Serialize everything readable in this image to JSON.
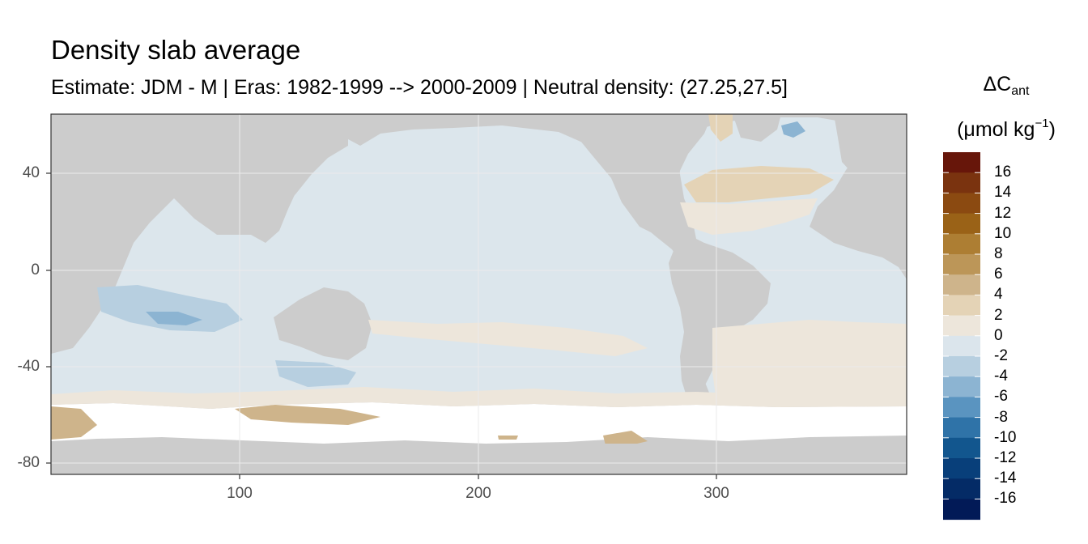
{
  "title": "Density slab average",
  "subtitle": "Estimate: JDM - M | Eras: 1982-1999 --> 2000-2009 | Neutral density: (27.25,27.5]",
  "legend": {
    "title_main": "ΔC",
    "title_sub": "ant",
    "unit_prefix": "(μmol kg",
    "unit_sup": "−1",
    "unit_suffix": ")",
    "bins": [
      {
        "label": "16",
        "color": "#67160a"
      },
      {
        "label": "14",
        "color": "#7a330f"
      },
      {
        "label": "12",
        "color": "#8b4a11"
      },
      {
        "label": "10",
        "color": "#9a6217"
      },
      {
        "label": "8",
        "color": "#ad7e33"
      },
      {
        "label": "6",
        "color": "#bc9658"
      },
      {
        "label": "4",
        "color": "#ceb48b"
      },
      {
        "label": "2",
        "color": "#e4d3b6"
      },
      {
        "label": "0",
        "color": "#ede6db"
      },
      {
        "label": "-2",
        "color": "#dbe5ec"
      },
      {
        "label": "-4",
        "color": "#b7cfe0"
      },
      {
        "label": "-6",
        "color": "#8cb4d2"
      },
      {
        "label": "-8",
        "color": "#5a94c0"
      },
      {
        "label": "-10",
        "color": "#2f73a8"
      },
      {
        "label": "-12",
        "color": "#12568e"
      },
      {
        "label": "-14",
        "color": "#083f7a"
      },
      {
        "label": "-16",
        "color": "#042b66"
      }
    ],
    "bottom_color": "#021a57"
  },
  "axes": {
    "x_ticks": [
      "100",
      "200",
      "300"
    ],
    "y_ticks": [
      "40",
      "0",
      "-40",
      "-80"
    ]
  },
  "colors": {
    "land": "#cccccc",
    "no_data": "#ffffff",
    "ocean_slight_negative": "#dce6ec",
    "grid": "#ebebeb",
    "frame": "#333333"
  },
  "chart_data": {
    "type": "heatmap",
    "title": "Density slab average",
    "subtitle": "Estimate: JDM - M | Eras: 1982-1999 --> 2000-2009 | Neutral density: (27.25,27.5]",
    "xlabel": "",
    "ylabel": "",
    "xlim": [
      20,
      380
    ],
    "ylim": [
      -85,
      65
    ],
    "x_ticks": [
      100,
      200,
      300
    ],
    "y_ticks": [
      40,
      0,
      -40,
      -80
    ],
    "grid": true,
    "legend_position": "right",
    "color_scale": {
      "name": "ΔCant (μmol kg−1)",
      "breaks": [
        16,
        14,
        12,
        10,
        8,
        6,
        4,
        2,
        0,
        -2,
        -4,
        -6,
        -8,
        -10,
        -12,
        -14,
        -16
      ]
    },
    "dominant_field_value_range": [
      -2,
      0
    ]
  }
}
